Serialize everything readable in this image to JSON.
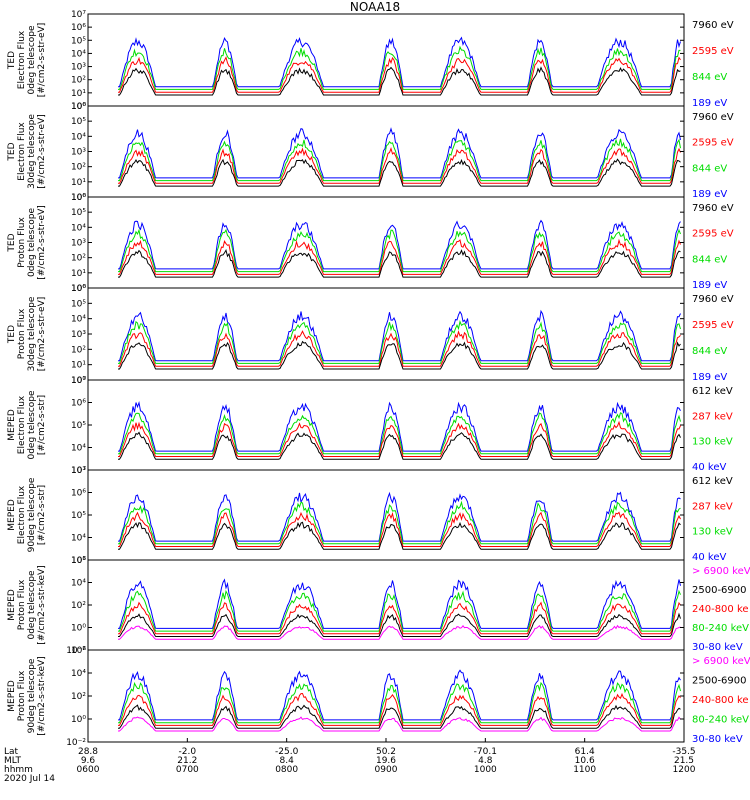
{
  "title": "NOAA18",
  "colors": {
    "blue": "#0000ff",
    "red": "#ff0000",
    "green": "#00dd00",
    "black": "#000000",
    "magenta": "#ff00ff"
  },
  "chart_data": [
    {
      "type": "line",
      "title": "",
      "ylabel": [
        "TED",
        "Electron Flux",
        "0deg telescope",
        "[#/cm2-s-str-eV]"
      ],
      "ylog": true,
      "ylim": [
        1,
        10000000
      ],
      "yticks": [
        "10⁰",
        "10¹",
        "10²",
        "10³",
        "10⁴",
        "10⁵",
        "10⁶",
        "10⁷"
      ],
      "legend": [
        {
          "label": "7960 eV",
          "color": "black"
        },
        {
          "label": "2595 eV",
          "color": "red"
        },
        {
          "label": "844 eV",
          "color": "green"
        },
        {
          "label": "189 eV",
          "color": "blue"
        }
      ]
    },
    {
      "type": "line",
      "title": "",
      "ylabel": [
        "TED",
        "Electron Flux",
        "30deg telescope",
        "[#/cm2-s-str-eV]"
      ],
      "ylog": true,
      "ylim": [
        1,
        1000000
      ],
      "yticks": [
        "10⁰",
        "10¹",
        "10²",
        "10³",
        "10⁴",
        "10⁵",
        "10⁶"
      ],
      "legend": [
        {
          "label": "7960 eV",
          "color": "black"
        },
        {
          "label": "2595 eV",
          "color": "red"
        },
        {
          "label": "844 eV",
          "color": "green"
        },
        {
          "label": "189 eV",
          "color": "blue"
        }
      ]
    },
    {
      "type": "line",
      "title": "",
      "ylabel": [
        "TED",
        "Proton Flux",
        "0deg telescope",
        "[#/cm2-s-str-eV]"
      ],
      "ylog": true,
      "ylim": [
        1,
        1000000
      ],
      "yticks": [
        "10⁰",
        "10¹",
        "10²",
        "10³",
        "10⁴",
        "10⁵",
        "10⁶"
      ],
      "legend": [
        {
          "label": "7960 eV",
          "color": "black"
        },
        {
          "label": "2595 eV",
          "color": "red"
        },
        {
          "label": "844 eV",
          "color": "green"
        },
        {
          "label": "189 eV",
          "color": "blue"
        }
      ]
    },
    {
      "type": "line",
      "title": "",
      "ylabel": [
        "TED",
        "Proton Flux",
        "30deg telescope",
        "[#/cm2-s-str-eV]"
      ],
      "ylog": true,
      "ylim": [
        1,
        1000000
      ],
      "yticks": [
        "10⁰",
        "10¹",
        "10²",
        "10³",
        "10⁴",
        "10⁵",
        "10⁶"
      ],
      "legend": [
        {
          "label": "7960 eV",
          "color": "black"
        },
        {
          "label": "2595 eV",
          "color": "red"
        },
        {
          "label": "844 eV",
          "color": "green"
        },
        {
          "label": "189 eV",
          "color": "blue"
        }
      ]
    },
    {
      "type": "line",
      "title": "",
      "ylabel": [
        "MEPED",
        "Electron Flux",
        "0deg telescope",
        "[#/cm2-s-str]"
      ],
      "ylog": true,
      "ylim": [
        1000,
        10000000
      ],
      "yticks": [
        "10³",
        "10⁴",
        "10⁵",
        "10⁶",
        "10⁷"
      ],
      "legend": [
        {
          "label": "612 keV",
          "color": "black"
        },
        {
          "label": "287 keV",
          "color": "red"
        },
        {
          "label": "130 keV",
          "color": "green"
        },
        {
          "label": "40 keV",
          "color": "blue"
        }
      ]
    },
    {
      "type": "line",
      "title": "",
      "ylabel": [
        "MEPED",
        "Electron Flux",
        "90deg telescope",
        "[#/cm2-s-str]"
      ],
      "ylog": true,
      "ylim": [
        1000,
        10000000
      ],
      "yticks": [
        "10³",
        "10⁴",
        "10⁵",
        "10⁶",
        "10⁷"
      ],
      "legend": [
        {
          "label": "612 keV",
          "color": "black"
        },
        {
          "label": "287 keV",
          "color": "red"
        },
        {
          "label": "130 keV",
          "color": "green"
        },
        {
          "label": "40 keV",
          "color": "blue"
        }
      ]
    },
    {
      "type": "line",
      "title": "",
      "ylabel": [
        "MEPED",
        "Proton Flux",
        "0deg telescope",
        "[#/cm2-s-str-keV]"
      ],
      "ylog": true,
      "ylim": [
        0.01,
        1000000
      ],
      "yticks": [
        "10⁻²",
        "10⁰",
        "10²",
        "10⁴",
        "10⁶"
      ],
      "legend": [
        {
          "label": "> 6900 keV",
          "color": "magenta"
        },
        {
          "label": "2500-6900",
          "color": "black"
        },
        {
          "label": "240-800 ke",
          "color": "red"
        },
        {
          "label": "80-240 keV",
          "color": "green"
        },
        {
          "label": "30-80 keV",
          "color": "blue"
        }
      ]
    },
    {
      "type": "line",
      "title": "",
      "ylabel": [
        "MEPED",
        "Proton Flux",
        "90deg telescope",
        "[#/cm2-s-str-keV]"
      ],
      "ylog": true,
      "ylim": [
        0.01,
        1000000
      ],
      "yticks": [
        "10⁻²",
        "10⁰",
        "10²",
        "10⁴",
        "10⁶"
      ],
      "legend": [
        {
          "label": "> 6900 keV",
          "color": "magenta"
        },
        {
          "label": "2500-6900",
          "color": "black"
        },
        {
          "label": "240-800 ke",
          "color": "red"
        },
        {
          "label": "80-240 keV",
          "color": "green"
        },
        {
          "label": "30-80 keV",
          "color": "blue"
        }
      ]
    }
  ],
  "x_axis": {
    "row_labels": [
      "Lat",
      "MLT",
      "hhmm",
      "2020 Jul 14"
    ],
    "ticks": [
      {
        "lat": "28.8",
        "mlt": "9.6",
        "hhmm": "0600"
      },
      {
        "lat": "-2.0",
        "mlt": "21.2",
        "hhmm": "0700"
      },
      {
        "lat": "-25.0",
        "mlt": "8.4",
        "hhmm": "0800"
      },
      {
        "lat": "50.2",
        "mlt": "19.6",
        "hhmm": "0900"
      },
      {
        "lat": "-70.1",
        "mlt": "4.8",
        "hhmm": "1000"
      },
      {
        "lat": "61.4",
        "mlt": "10.6",
        "hhmm": "1100"
      },
      {
        "lat": "-35.5",
        "mlt": "21.5",
        "hhmm": "1200"
      }
    ]
  },
  "pass_events": [
    {
      "center": 0.5,
      "width": 0.18
    },
    {
      "center": 1.38,
      "width": 0.12
    },
    {
      "center": 2.15,
      "width": 0.22
    },
    {
      "center": 3.05,
      "width": 0.12
    },
    {
      "center": 3.75,
      "width": 0.2
    },
    {
      "center": 4.55,
      "width": 0.12
    },
    {
      "center": 5.35,
      "width": 0.22
    },
    {
      "center": 5.95,
      "width": 0.08
    }
  ]
}
